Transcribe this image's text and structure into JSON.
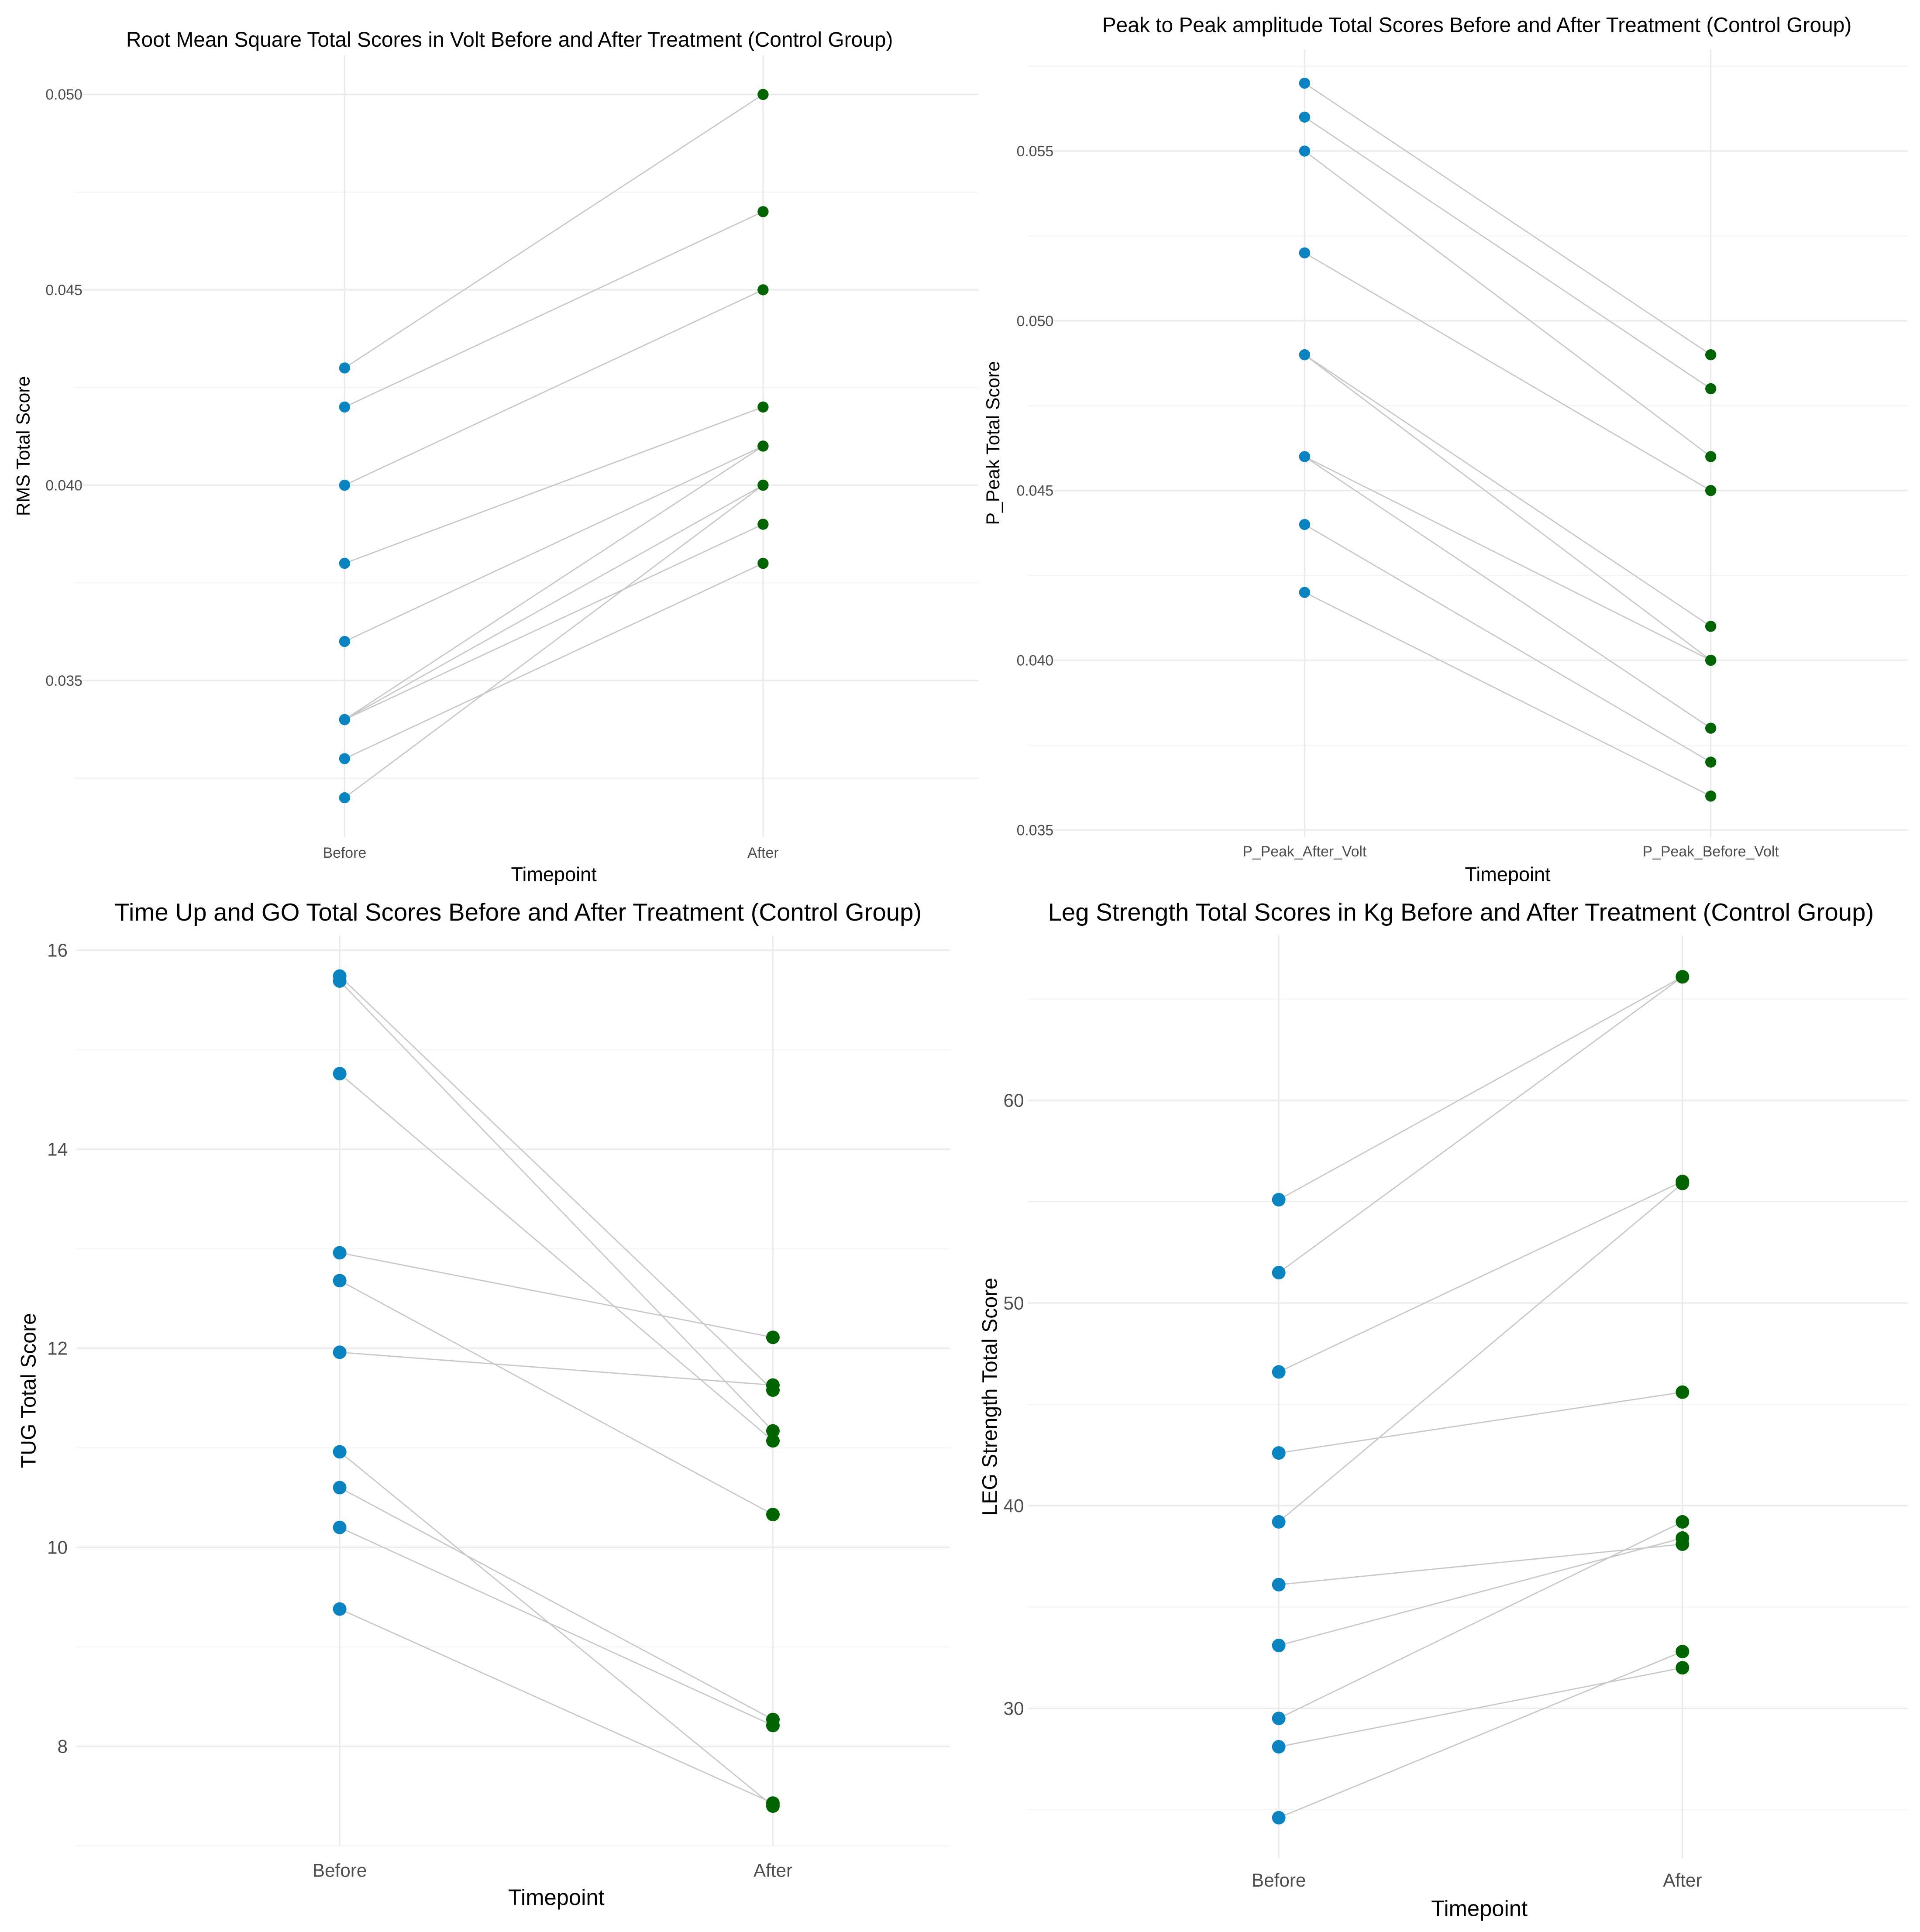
{
  "colors": {
    "before": "#0a84c0",
    "after": "#006400",
    "line": "#c8c8c8",
    "grid": "#ebebeb"
  },
  "chart_data": [
    {
      "type": "line",
      "title": "Root Mean Square Total Scores in Volt Before and After Treatment (Control Group)",
      "xlabel": "Timepoint",
      "ylabel": "RMS Total Score",
      "categories": [
        "Before",
        "After"
      ],
      "yticks": [
        0.035,
        0.04,
        0.045,
        0.05
      ],
      "ytick_labels": [
        "0.035",
        "0.040",
        "0.045",
        "0.050"
      ],
      "ylim": [
        0.031,
        0.051
      ],
      "grid": true,
      "pairs": [
        [
          0.043,
          0.05
        ],
        [
          0.042,
          0.047
        ],
        [
          0.04,
          0.045
        ],
        [
          0.038,
          0.042
        ],
        [
          0.036,
          0.041
        ],
        [
          0.034,
          0.041
        ],
        [
          0.034,
          0.04
        ],
        [
          0.034,
          0.039
        ],
        [
          0.033,
          0.038
        ],
        [
          0.032,
          0.04
        ]
      ]
    },
    {
      "type": "line",
      "title": "Peak to Peak amplitude Total Scores Before and After Treatment (Control Group)",
      "xlabel": "Timepoint",
      "ylabel": "P_Peak Total Score",
      "categories": [
        "P_Peak_After_Volt",
        "P_Peak_Before_Volt"
      ],
      "yticks": [
        0.035,
        0.04,
        0.045,
        0.05,
        0.055
      ],
      "ytick_labels": [
        "0.035",
        "0.040",
        "0.045",
        "0.050",
        "0.055"
      ],
      "ylim": [
        0.0348,
        0.058
      ],
      "grid": true,
      "pairs": [
        [
          0.057,
          0.049
        ],
        [
          0.056,
          0.048
        ],
        [
          0.055,
          0.046
        ],
        [
          0.052,
          0.045
        ],
        [
          0.049,
          0.041
        ],
        [
          0.049,
          0.04
        ],
        [
          0.046,
          0.04
        ],
        [
          0.046,
          0.038
        ],
        [
          0.044,
          0.037
        ],
        [
          0.042,
          0.036
        ]
      ]
    },
    {
      "type": "line",
      "title": "Time Up and GO Total Scores Before and After Treatment (Control Group)",
      "xlabel": "Timepoint",
      "ylabel": "TUG Total Score",
      "categories": [
        "Before",
        "After"
      ],
      "yticks": [
        8,
        10,
        12,
        14,
        16
      ],
      "ytick_labels": [
        "8",
        "10",
        "12",
        "14",
        "16"
      ],
      "ylim": [
        7.0,
        16.15
      ],
      "grid": true,
      "pairs": [
        [
          15.74,
          11.58
        ],
        [
          15.69,
          11.17
        ],
        [
          14.76,
          11.07
        ],
        [
          12.96,
          12.11
        ],
        [
          12.68,
          10.33
        ],
        [
          11.96,
          11.63
        ],
        [
          10.96,
          7.4
        ],
        [
          10.6,
          8.27
        ],
        [
          10.2,
          8.21
        ],
        [
          9.38,
          7.43
        ]
      ]
    },
    {
      "type": "line",
      "title": "Leg Strength Total Scores in Kg Before and After Treatment (Control Group)",
      "xlabel": "Timepoint",
      "ylabel": "LEG Strength Total Score",
      "categories": [
        "Before",
        "After"
      ],
      "yticks": [
        30,
        40,
        50,
        60
      ],
      "ytick_labels": [
        "30",
        "40",
        "50",
        "60"
      ],
      "ylim": [
        22.6,
        68.15
      ],
      "grid": true,
      "pairs": [
        [
          55.1,
          66.1
        ],
        [
          51.5,
          66.1
        ],
        [
          46.6,
          56.0
        ],
        [
          42.6,
          45.6
        ],
        [
          39.2,
          55.9
        ],
        [
          36.1,
          38.1
        ],
        [
          33.1,
          38.4
        ],
        [
          29.5,
          39.2
        ],
        [
          28.1,
          32.0
        ],
        [
          24.6,
          32.8
        ]
      ]
    }
  ]
}
